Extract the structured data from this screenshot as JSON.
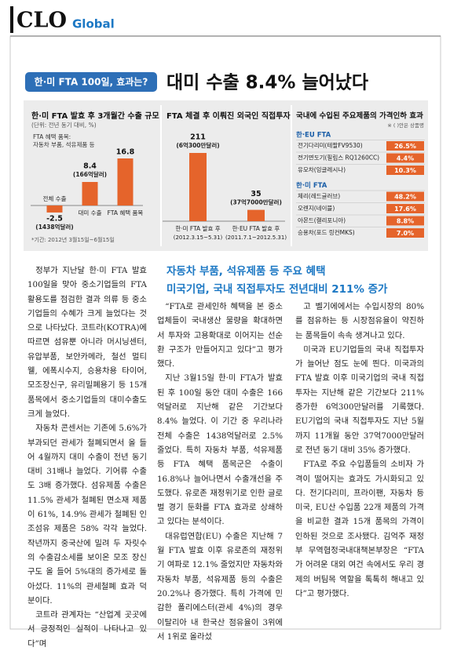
{
  "header": {
    "logo": "CLO",
    "section": "Global"
  },
  "kicker": "한·미 FTA 100일, 효과는?",
  "headline": "대미 수출 8.4% 늘어났다",
  "chart_data": [
    {
      "type": "bar",
      "title": "한·미 FTA 발효 후 3개월간 수출 규모",
      "unit": "(단위: 전년 동기 대비, %)",
      "annotation": [
        "FTA 혜택 품목:",
        "자동차 부품, 석유제품 등"
      ],
      "categories": [
        "전체 수출",
        "대미 수출",
        "FTA 혜택 품목"
      ],
      "values": [
        -2.5,
        8.4,
        16.8
      ],
      "value_notes": [
        "(1438억달러)",
        "(166억달러)",
        null
      ],
      "color": "#e5642b",
      "footnote": "*기간: 2012년 3월15일~6월15일"
    },
    {
      "type": "bar",
      "title": "FTA 체결 후 이뤄진 외국인 직접투자",
      "categories": [
        "한·미 FTA 발효 후",
        "한·EU FTA 발효 후"
      ],
      "periods": [
        "(2012.3.15~5.31)",
        "(2011.7.1~2012.5.31)"
      ],
      "values": [
        211,
        35
      ],
      "value_notes": [
        "(6억300만달러)",
        "(37억7000만달러)"
      ],
      "color": "#e5642b"
    },
    {
      "type": "table",
      "title": "국내에 수입된 주요제품의 가격인하 효과",
      "note": "※ ( )안은 상품명",
      "color": "#e5642b",
      "groups": [
        {
          "name": "한·EU FTA",
          "items": [
            "전기다리미(테팔FV9530)",
            "전기면도기(필립스 RQ1260CC)",
            "유모차(잉글레시나)"
          ],
          "values": [
            26.5,
            4.4,
            10.3
          ],
          "value_labels": [
            "26.5%",
            "4.4%",
            "10.3%"
          ]
        },
        {
          "name": "한·미 FTA",
          "items": [
            "체리(레드글러브)",
            "오렌지(네이블)",
            "아몬드(캘리포니아)",
            "승용차(포드 링컨MKS)"
          ],
          "values": [
            48.2,
            17.6,
            8.8,
            7.0
          ],
          "value_labels": [
            "48.2%",
            "17.6%",
            "8.8%",
            "7.0%"
          ]
        }
      ]
    }
  ],
  "subheads": [
    "자동차 부품, 석유제품 등 주요 혜택",
    "미국기업, 국내 직접투자도 전년대비 211% 증가"
  ],
  "columns": [
    [
      "정부가 지난달 한·미 FTA 발효 100일을 맞아 중소기업들의 FTA 활용도를 점검한 결과 의류 등 중소기업들의 수혜가 크게 늘었다는 것으로 나타났다. 코트라(KOTRA)에 따르면 섬유뿐 아니라 머시닝센터, 유압부품, 보안카메라, 철선 멀티웰, 에폭시수지, 승용차용 타이어, 모조장신구, 유리밀폐용기 등 15개 품목에서 중소기업들의 대미수출도 크게 늘었다.",
      "자동차 콘센서는 기존에 5.6%가 부과되던 관세가 철폐되면서 올 들어 4월까지 대미 수출이 전년 동기 대비 31배나 늘었다. 기어류 수출도 3배 증가했다. 섬유제품 수출은 11.5% 관세가 철폐된 면소재 제품이 61%, 14.9% 관세가 철폐된 인조섬유 제품은 58% 각각 늘었다. 작년까지 중국산에 밀려 두 자릿수의 수출감소세를 보이온 모조 장신구도 올 들어 5%대의 증가세로 돌아섰다. 11%의 관세철폐 효과 덕분이다.",
      "코트라 관계자는 “산업계 곳곳에서 긍정적인 실적이 나타나고 있다”며"
    ],
    [
      "“FTA로 관세인하 혜택을 본 중소업체들이 국내생산 물량을 확대하면서 투자와 고용확대로 이어지는 선순환 구조가 만들어지고 있다”고 평가했다.",
      "지난 3월15일 한·미 FTA가 발효된 후 100일 동안 대미 수출은 166억달러로 지난해 같은 기간보다 8.4% 늘었다. 이 기간 중 우리나라 전체 수출은 1438억달러로 2.5% 줄었다. 특히 자동차 부품, 석유제품 등 FTA 혜택 품목군은 수출이 16.8%나 늘어나면서 수출개선을 주도했다. 유로존 재정위기로 인한 글로벌 경기 둔화를 FTA 효과로 상쇄하고 있다는 분석이다.",
      "대유럽연합(EU) 수출은 지난해 7월 FTA 발효 이후 유로존의 재정위기 여파로 12.1% 줄었지만 자동차와 자동차 부품, 석유제품 등의 수출은 20.2%나 증가했다. 특히 가격에 민감한 폴리에스터(관세 4%)의 경우 이탈리아 내 한국산 점유율이 3위에서 1위로 올라섰"
    ],
    [
      "고 벨기에에서는 수입시장의 80%를 점유하는 등 시장점유율이 약진하는 품목들이 속속 생겨나고 있다.",
      "미국과 EU기업들의 국내 직접투자가 늘어난 점도 눈에 띈다. 미국과의 FTA 발효 이후 미국기업의 국내 직접투자는 지난해 같은 기간보다 211% 증가한 6억300만달러를 기록했다. EU기업의 국내 직접투자도 지난 5월까지 11개월 동안 37억7000만달러로 전년 동기 대비 35% 증가했다.",
      "FTA로 주요 수입품들의 소비자 가격이 떨어지는 효과도 가시화되고 있다. 전기다리미, 프라이팬, 자동차 등 미국, EU산 수입품 22개 제품의 가격을 비교한 결과 15개 품목의 가격이 인하된 것으로 조사됐다. 김억주 재정부 무역협정국내대책본부장은 “FTA가 어려운 대외 여건 속에서도 우리 경제의 버팀목 역할을 톡톡히 해내고 있다”고 평가했다."
    ]
  ]
}
